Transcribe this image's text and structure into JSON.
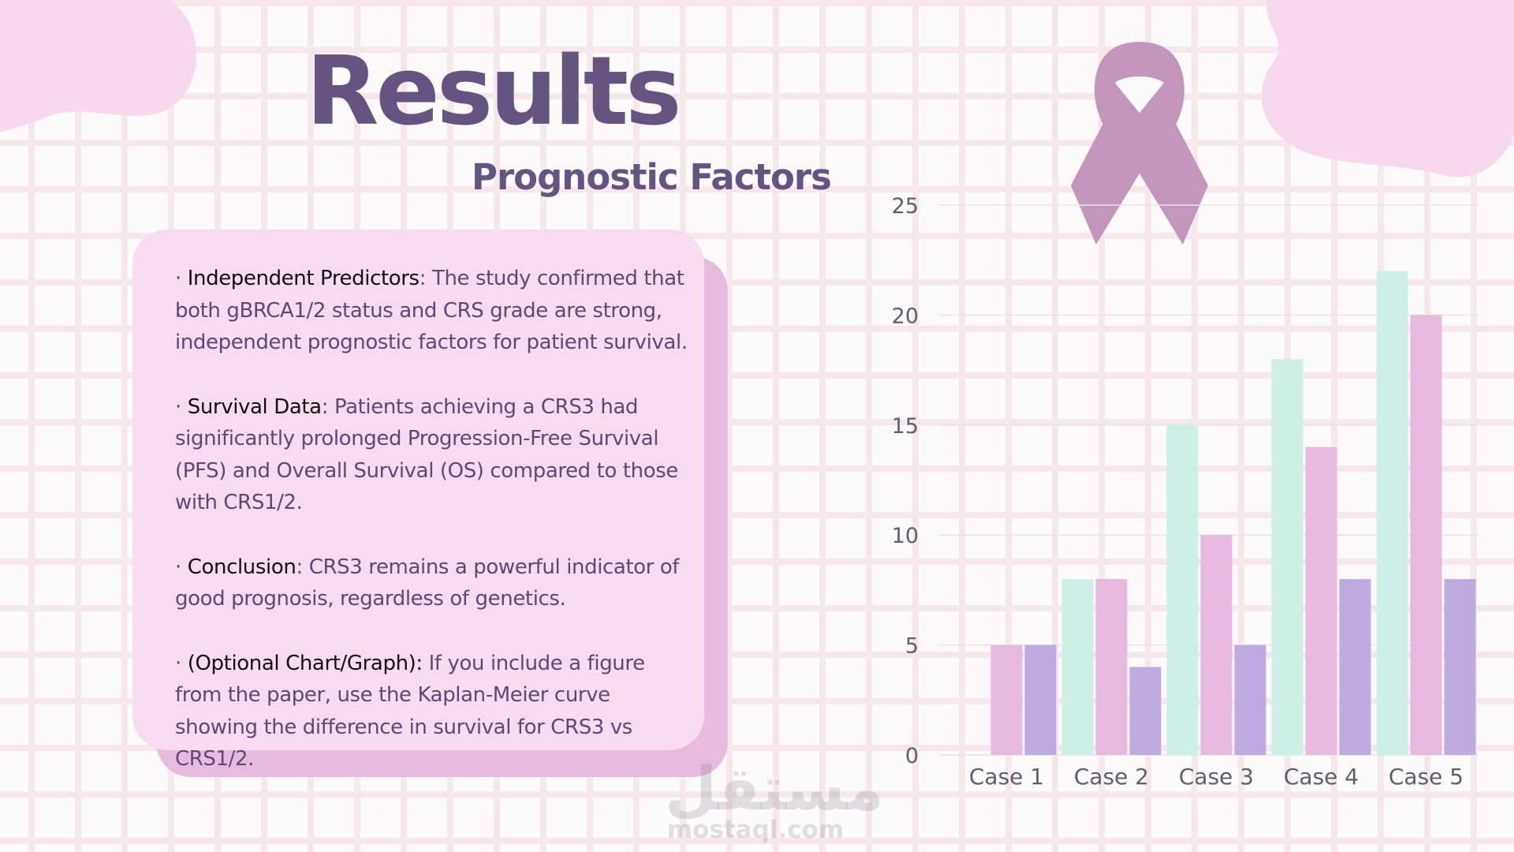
{
  "slide": {
    "title": "Results",
    "subtitle": "Prognostic Factors",
    "bullets": [
      {
        "bullet": "·",
        "lead": "Independent Predictors",
        "sep": ":",
        "text": " The study confirmed that both gBRCA1/2 status and CRS grade are strong, independent prognostic factors for patient survival."
      },
      {
        "bullet": "·",
        "lead": "Survival Data",
        "sep": ":",
        "text": " Patients achieving a CRS3 had significantly prolonged Progression-Free Survival (PFS) and Overall Survival (OS) compared to those with CRS1/2."
      },
      {
        "bullet": "·",
        "lead": "Conclusion",
        "sep": ":",
        "text": " CRS3 remains a powerful indicator of good prognosis, regardless of genetics."
      },
      {
        "bullet": "·",
        "lead": "(Optional Chart/Graph):",
        "sep": "",
        "text": " If you include a figure from the paper, use the Kaplan-Meier curve showing the difference in survival for CRS3 vs CRS1/2."
      }
    ],
    "icons": {
      "ribbon": "awareness-ribbon-icon"
    },
    "watermark": {
      "logo": "مستقل",
      "url": "mostaql.com"
    },
    "colors": {
      "title": "#645482",
      "card": "#f7dcef",
      "card_shadow": "#e7bbdc",
      "ribbon": "#c596bb",
      "blob": "#f6d9ee"
    }
  },
  "chart_data": {
    "type": "bar",
    "categories": [
      "Case 1",
      "Case 2",
      "Case 3",
      "Case 4",
      "Case 5"
    ],
    "series": [
      {
        "values": [
          0,
          8,
          15,
          18,
          22
        ],
        "color": "#ccefe8"
      },
      {
        "values": [
          5,
          8,
          10,
          14,
          20
        ],
        "color": "#e7b9de"
      },
      {
        "values": [
          5,
          4,
          5,
          8,
          8
        ],
        "color": "#bfabe1"
      }
    ],
    "yticks": [
      0,
      5,
      10,
      15,
      20,
      25
    ],
    "ylim": [
      0,
      25
    ],
    "grid": true,
    "legend": "none"
  }
}
